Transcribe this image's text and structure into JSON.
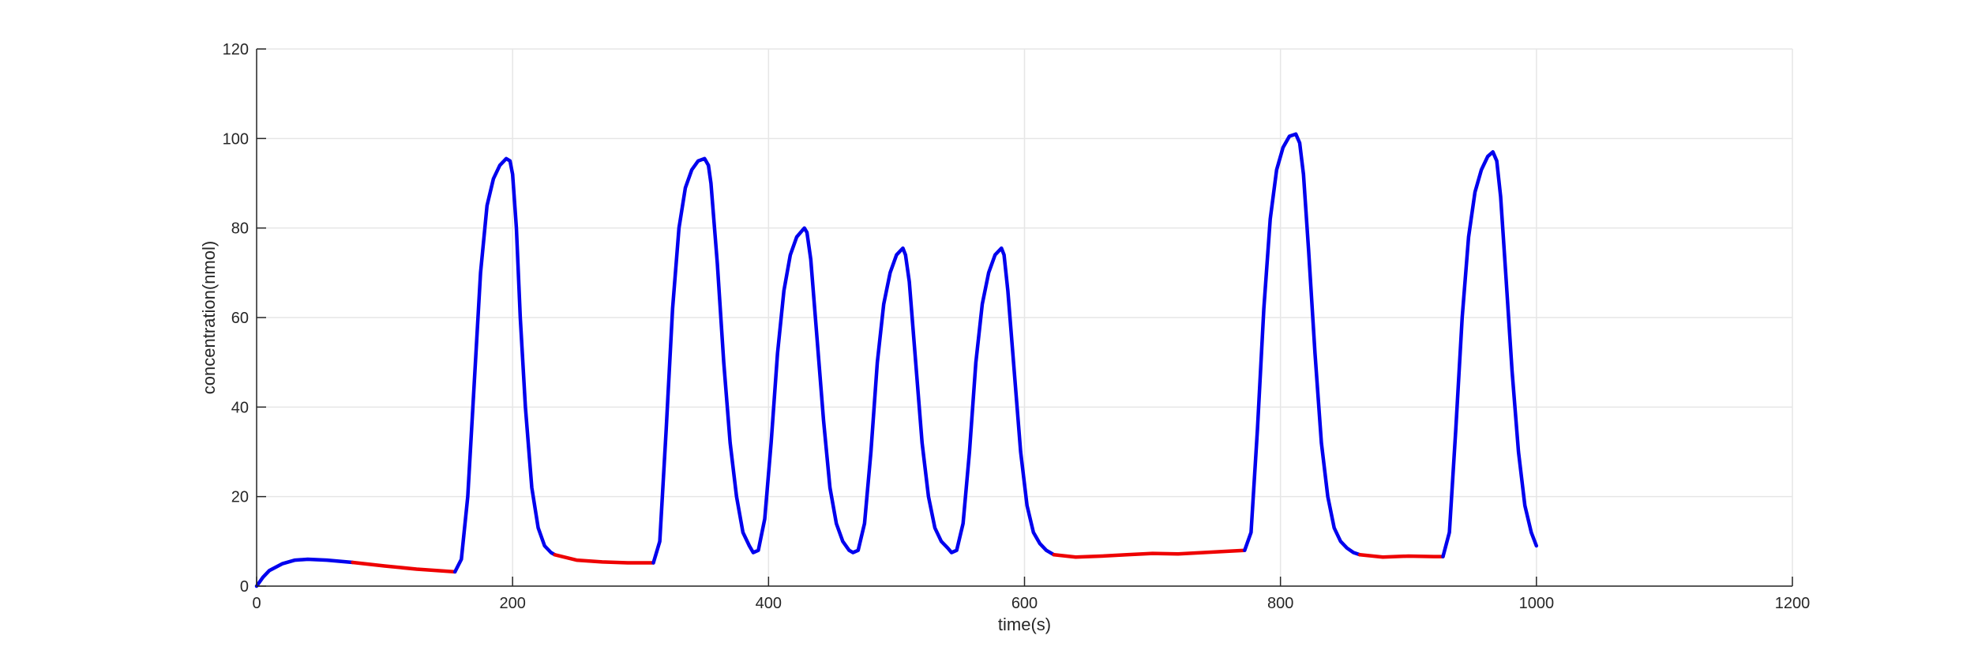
{
  "chart_data": {
    "type": "line",
    "title": "",
    "xlabel": "time(s)",
    "ylabel": "concentration(nmol)",
    "xlim": [
      0,
      1200
    ],
    "ylim": [
      0,
      120
    ],
    "xticks": [
      0,
      200,
      400,
      600,
      800,
      1000,
      1200
    ],
    "yticks": [
      0,
      20,
      40,
      60,
      80,
      100,
      120
    ],
    "grid": true,
    "legend": "none",
    "colors": {
      "blue": "#0000ee",
      "red": "#ee0000"
    },
    "segments": [
      {
        "color": "blue",
        "x": [
          0,
          5,
          10,
          20,
          30,
          40,
          55,
          75
        ],
        "y": [
          0,
          2,
          3.5,
          5,
          5.8,
          6,
          5.8,
          5.3
        ]
      },
      {
        "color": "red",
        "x": [
          75,
          100,
          125,
          155
        ],
        "y": [
          5.3,
          4.5,
          3.8,
          3.2
        ]
      },
      {
        "color": "blue",
        "x": [
          155,
          160,
          165,
          170,
          175,
          180,
          185,
          190,
          195,
          198,
          200,
          203,
          206,
          210,
          215,
          220,
          225,
          230,
          233
        ],
        "y": [
          3.2,
          6,
          20,
          45,
          70,
          85,
          91,
          94,
          95.5,
          95,
          92,
          80,
          60,
          40,
          22,
          13,
          9,
          7.5,
          7
        ]
      },
      {
        "color": "red",
        "x": [
          233,
          250,
          270,
          290,
          310
        ],
        "y": [
          7,
          5.8,
          5.4,
          5.2,
          5.2
        ]
      },
      {
        "color": "blue",
        "x": [
          310,
          315,
          320,
          325,
          330,
          335,
          340,
          345,
          350,
          353,
          355,
          360,
          365,
          370,
          375,
          380,
          385,
          388,
          392,
          397,
          402,
          407,
          412,
          417,
          422,
          428,
          430,
          433,
          438,
          443,
          448,
          453,
          458,
          463,
          466,
          470,
          475,
          480,
          485,
          490,
          495,
          500,
          505,
          507,
          510,
          515,
          520,
          525,
          530,
          535,
          540,
          543,
          547,
          552,
          557,
          562,
          567,
          572,
          577,
          582,
          584,
          587,
          592,
          597,
          602,
          607,
          612,
          617,
          623
        ],
        "y": [
          5.2,
          10,
          35,
          62,
          80,
          89,
          93,
          95,
          95.5,
          94,
          90,
          72,
          50,
          32,
          20,
          12,
          9,
          7.5,
          8,
          15,
          32,
          52,
          66,
          74,
          78,
          80,
          79,
          73,
          55,
          37,
          22,
          14,
          10,
          8,
          7.5,
          8,
          14,
          30,
          50,
          63,
          70,
          74,
          75.5,
          74,
          68,
          50,
          32,
          20,
          13,
          10,
          8.5,
          7.5,
          8,
          14,
          30,
          50,
          63,
          70,
          74,
          75.5,
          74,
          66,
          48,
          30,
          18,
          12,
          9.5,
          8,
          7
        ]
      },
      {
        "color": "red",
        "x": [
          623,
          640,
          660,
          680,
          700,
          720,
          740,
          760,
          772
        ],
        "y": [
          7,
          6.5,
          6.7,
          7,
          7.3,
          7.2,
          7.5,
          7.8,
          8
        ]
      },
      {
        "color": "blue",
        "x": [
          772,
          777,
          782,
          787,
          792,
          797,
          802,
          807,
          812,
          815,
          818,
          822,
          827,
          832,
          837,
          842,
          847,
          852,
          857,
          862
        ],
        "y": [
          8,
          12,
          35,
          62,
          82,
          93,
          98,
          100.5,
          101,
          99,
          92,
          75,
          52,
          32,
          20,
          13,
          10,
          8.5,
          7.5,
          7
        ]
      },
      {
        "color": "red",
        "x": [
          862,
          880,
          900,
          920,
          927
        ],
        "y": [
          7,
          6.5,
          6.7,
          6.6,
          6.6
        ]
      },
      {
        "color": "blue",
        "x": [
          927,
          932,
          937,
          942,
          947,
          952,
          957,
          962,
          966,
          969,
          972,
          976,
          981,
          986,
          991,
          996,
          1000
        ],
        "y": [
          6.6,
          12,
          35,
          60,
          78,
          88,
          93,
          96,
          97,
          95,
          87,
          70,
          48,
          30,
          18,
          12,
          9
        ]
      }
    ]
  }
}
